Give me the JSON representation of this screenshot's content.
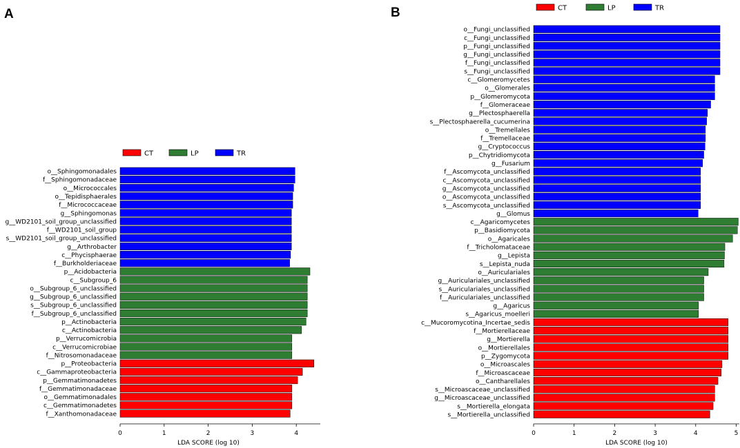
{
  "colors": {
    "CT": "#ff0000",
    "LP": "#2e7d32",
    "TR": "#0000ff",
    "edge": "#000000"
  },
  "chart_data": [
    {
      "panel": "A",
      "type": "bar",
      "orientation": "horizontal",
      "xlabel": "LDA SCORE (log 10)",
      "xlim": [
        0,
        4.5
      ],
      "xticks": [
        0,
        1,
        2,
        3,
        4
      ],
      "legend": [
        {
          "name": "CT",
          "color": "#ff0000"
        },
        {
          "name": "LP",
          "color": "#2e7d32"
        },
        {
          "name": "TR",
          "color": "#0000ff"
        }
      ],
      "bars": [
        {
          "label": "o__Sphingomonadales",
          "value": 3.97,
          "group": "TR"
        },
        {
          "label": "f__Sphingomonadaceae",
          "value": 3.97,
          "group": "TR"
        },
        {
          "label": "o__Micrococcales",
          "value": 3.94,
          "group": "TR"
        },
        {
          "label": "o__Tepidisphaerales",
          "value": 3.92,
          "group": "TR"
        },
        {
          "label": "f__Micrococcaceae",
          "value": 3.92,
          "group": "TR"
        },
        {
          "label": "g__Sphingomonas",
          "value": 3.89,
          "group": "TR"
        },
        {
          "label": "g__WD2101_soil_group_unclassified",
          "value": 3.89,
          "group": "TR"
        },
        {
          "label": "f__WD2101_soil_group",
          "value": 3.89,
          "group": "TR"
        },
        {
          "label": "s__WD2101_soil_group_unclassified",
          "value": 3.89,
          "group": "TR"
        },
        {
          "label": "g__Arthrobacter",
          "value": 3.89,
          "group": "TR"
        },
        {
          "label": "c__Phycisphaerae",
          "value": 3.87,
          "group": "TR"
        },
        {
          "label": "f__Burkholderiaceae",
          "value": 3.85,
          "group": "TR"
        },
        {
          "label": "p__Acidobacteria",
          "value": 4.31,
          "group": "LP"
        },
        {
          "label": "c__Subgroup_6",
          "value": 4.25,
          "group": "LP"
        },
        {
          "label": "o__Subgroup_6_unclassified",
          "value": 4.25,
          "group": "LP"
        },
        {
          "label": "g__Subgroup_6_unclassified",
          "value": 4.25,
          "group": "LP"
        },
        {
          "label": "s__Subgroup_6_unclassified",
          "value": 4.25,
          "group": "LP"
        },
        {
          "label": "f__Subgroup_6_unclassified",
          "value": 4.25,
          "group": "LP"
        },
        {
          "label": "p__Actinobacteria",
          "value": 4.22,
          "group": "LP"
        },
        {
          "label": "c__Actinobacteria",
          "value": 4.12,
          "group": "LP"
        },
        {
          "label": "p__Verrucomicrobia",
          "value": 3.9,
          "group": "LP"
        },
        {
          "label": "c__Verrucomicrobiae",
          "value": 3.9,
          "group": "LP"
        },
        {
          "label": "f__Nitrosomonadaceae",
          "value": 3.9,
          "group": "LP"
        },
        {
          "label": "p__Proteobacteria",
          "value": 4.4,
          "group": "CT"
        },
        {
          "label": "c__Gammaproteobacteria",
          "value": 4.14,
          "group": "CT"
        },
        {
          "label": "p__Gemmatimonadetes",
          "value": 4.03,
          "group": "CT"
        },
        {
          "label": "f__Gemmatimonadaceae",
          "value": 3.9,
          "group": "CT"
        },
        {
          "label": "o__Gemmatimonadales",
          "value": 3.9,
          "group": "CT"
        },
        {
          "label": "c__Gemmatimonadetes",
          "value": 3.9,
          "group": "CT"
        },
        {
          "label": "f__Xanthomonadaceae",
          "value": 3.86,
          "group": "CT"
        }
      ]
    },
    {
      "panel": "B",
      "type": "bar",
      "orientation": "horizontal",
      "xlabel": "LDA SCORE (log 10)",
      "xlim": [
        0,
        5.1
      ],
      "xticks": [
        0,
        1,
        2,
        3,
        4,
        5
      ],
      "legend": [
        {
          "name": "CT",
          "color": "#ff0000"
        },
        {
          "name": "LP",
          "color": "#2e7d32"
        },
        {
          "name": "TR",
          "color": "#0000ff"
        }
      ],
      "bars": [
        {
          "label": "o__Fungi_unclassified",
          "value": 4.6,
          "group": "TR"
        },
        {
          "label": "c__Fungi_unclassified",
          "value": 4.6,
          "group": "TR"
        },
        {
          "label": "p__Fungi_unclassified",
          "value": 4.6,
          "group": "TR"
        },
        {
          "label": "g__Fungi_unclassified",
          "value": 4.6,
          "group": "TR"
        },
        {
          "label": "f__Fungi_unclassified",
          "value": 4.6,
          "group": "TR"
        },
        {
          "label": "s__Fungi_unclassified",
          "value": 4.6,
          "group": "TR"
        },
        {
          "label": "c__Glomeromycetes",
          "value": 4.47,
          "group": "TR"
        },
        {
          "label": "o__Glomerales",
          "value": 4.47,
          "group": "TR"
        },
        {
          "label": "p__Glomeromycota",
          "value": 4.47,
          "group": "TR"
        },
        {
          "label": "f__Glomeraceae",
          "value": 4.37,
          "group": "TR"
        },
        {
          "label": "g__Plectosphaerella",
          "value": 4.29,
          "group": "TR"
        },
        {
          "label": "s__Plectosphaerella_cucumerina",
          "value": 4.27,
          "group": "TR"
        },
        {
          "label": "o__Tremellales",
          "value": 4.24,
          "group": "TR"
        },
        {
          "label": "f__Tremellaceae",
          "value": 4.24,
          "group": "TR"
        },
        {
          "label": "g__Cryptococcus",
          "value": 4.23,
          "group": "TR"
        },
        {
          "label": "p__Chytridiomycota",
          "value": 4.2,
          "group": "TR"
        },
        {
          "label": "g__Fusarium",
          "value": 4.17,
          "group": "TR"
        },
        {
          "label": "f__Ascomycota_unclassified",
          "value": 4.12,
          "group": "TR"
        },
        {
          "label": "c__Ascomycota_unclassified",
          "value": 4.12,
          "group": "TR"
        },
        {
          "label": "g__Ascomycota_unclassified",
          "value": 4.12,
          "group": "TR"
        },
        {
          "label": "o__Ascomycota_unclassified",
          "value": 4.12,
          "group": "TR"
        },
        {
          "label": "s__Ascomycota_unclassified",
          "value": 4.12,
          "group": "TR"
        },
        {
          "label": "g__Glomus",
          "value": 4.06,
          "group": "TR"
        },
        {
          "label": "c__Agaricomycetes",
          "value": 5.05,
          "group": "LP"
        },
        {
          "label": "p__Basidiomycota",
          "value": 5.03,
          "group": "LP"
        },
        {
          "label": "o__Agaricales",
          "value": 4.91,
          "group": "LP"
        },
        {
          "label": "f__Tricholomataceae",
          "value": 4.72,
          "group": "LP"
        },
        {
          "label": "g__Lepista",
          "value": 4.71,
          "group": "LP"
        },
        {
          "label": "s__Lepista_nuda",
          "value": 4.7,
          "group": "LP"
        },
        {
          "label": "o__Auriculariales",
          "value": 4.31,
          "group": "LP"
        },
        {
          "label": "g__Auriculariales_unclassified",
          "value": 4.2,
          "group": "LP"
        },
        {
          "label": "s__Auriculariales_unclassified",
          "value": 4.2,
          "group": "LP"
        },
        {
          "label": "f__Auriculariales_unclassified",
          "value": 4.2,
          "group": "LP"
        },
        {
          "label": "g__Agaricus",
          "value": 4.07,
          "group": "LP"
        },
        {
          "label": "s__Agaricus_moelleri",
          "value": 4.07,
          "group": "LP"
        },
        {
          "label": "c__Mucoromycotina_Incertae_sedis",
          "value": 4.8,
          "group": "CT"
        },
        {
          "label": "f__Mortierellaceae",
          "value": 4.8,
          "group": "CT"
        },
        {
          "label": "g__Mortierella",
          "value": 4.8,
          "group": "CT"
        },
        {
          "label": "o__Mortierellales",
          "value": 4.8,
          "group": "CT"
        },
        {
          "label": "p__Zygomycota",
          "value": 4.8,
          "group": "CT"
        },
        {
          "label": "o__Microascales",
          "value": 4.65,
          "group": "CT"
        },
        {
          "label": "f__Microascaceae",
          "value": 4.63,
          "group": "CT"
        },
        {
          "label": "o__Cantharellales",
          "value": 4.55,
          "group": "CT"
        },
        {
          "label": "s__Microascaceae_unclassified",
          "value": 4.47,
          "group": "CT"
        },
        {
          "label": "g__Microascaceae_unclassified",
          "value": 4.47,
          "group": "CT"
        },
        {
          "label": "s__Mortierella_elongata",
          "value": 4.43,
          "group": "CT"
        },
        {
          "label": "s__Mortierella_unclassified",
          "value": 4.35,
          "group": "CT"
        }
      ]
    }
  ]
}
